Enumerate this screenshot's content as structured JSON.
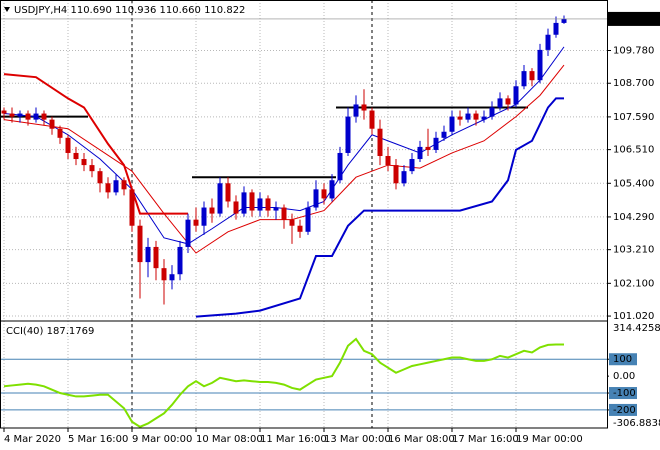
{
  "chart_data": [
    {
      "type": "candlestick",
      "header": "USDJPY,H4  110.690 110.936 110.660 110.822",
      "ylim": [
        100.89,
        111.38
      ],
      "yticks": [
        {
          "value": 109.78,
          "label": "109.780"
        },
        {
          "value": 108.7,
          "label": "108.700"
        },
        {
          "value": 107.59,
          "label": "107.590"
        },
        {
          "value": 106.51,
          "label": "106.510"
        },
        {
          "value": 105.4,
          "label": "105.400"
        },
        {
          "value": 104.29,
          "label": "104.290"
        },
        {
          "value": 103.21,
          "label": "103.210"
        },
        {
          "value": 102.1,
          "label": "102.100"
        },
        {
          "value": 101.02,
          "label": "101.020"
        }
      ],
      "last_price": 110.822,
      "xticks": [
        {
          "value": 0,
          "label": "4 Mar 2020"
        },
        {
          "value": 8,
          "label": "5 Mar 16:00"
        },
        {
          "value": 16,
          "label": "9 Mar 00:00"
        },
        {
          "value": 24,
          "label": "10 Mar 08:00"
        },
        {
          "value": 32,
          "label": "11 Mar 16:00"
        },
        {
          "value": 40,
          "label": "13 Mar 00:00"
        },
        {
          "value": 48,
          "label": "16 Mar 08:00"
        },
        {
          "value": 56,
          "label": "17 Mar 16:00"
        },
        {
          "value": 64,
          "label": "19 Mar 00:00"
        }
      ],
      "separators": [
        16,
        46
      ],
      "up_color": "#0000cc",
      "down_color": "#cc0000",
      "candles": [
        [
          107.8,
          107.9,
          107.5,
          107.7
        ],
        [
          107.7,
          107.9,
          107.4,
          107.6
        ],
        [
          107.6,
          107.8,
          107.4,
          107.7
        ],
        [
          107.7,
          107.8,
          107.3,
          107.5
        ],
        [
          107.5,
          107.9,
          107.4,
          107.7
        ],
        [
          107.7,
          107.8,
          107.3,
          107.5
        ],
        [
          107.5,
          107.6,
          107.0,
          107.2
        ],
        [
          107.2,
          107.3,
          106.7,
          106.9
        ],
        [
          106.9,
          107.0,
          106.2,
          106.4
        ],
        [
          106.4,
          106.6,
          106.0,
          106.2
        ],
        [
          106.2,
          106.4,
          105.8,
          106.0
        ],
        [
          106.0,
          106.2,
          105.6,
          105.8
        ],
        [
          105.8,
          105.9,
          105.1,
          105.4
        ],
        [
          105.4,
          105.6,
          104.9,
          105.1
        ],
        [
          105.1,
          105.7,
          105.0,
          105.5
        ],
        [
          105.5,
          105.6,
          105.0,
          105.2
        ],
        [
          105.2,
          105.3,
          103.8,
          104.0
        ],
        [
          104.0,
          104.2,
          101.6,
          102.8
        ],
        [
          102.8,
          103.6,
          102.3,
          103.3
        ],
        [
          103.3,
          103.5,
          102.2,
          102.6
        ],
        [
          102.6,
          102.9,
          101.4,
          102.2
        ],
        [
          102.2,
          102.7,
          101.9,
          102.4
        ],
        [
          102.4,
          103.5,
          102.2,
          103.3
        ],
        [
          103.3,
          104.4,
          103.1,
          104.2
        ],
        [
          104.2,
          104.6,
          103.8,
          104.0
        ],
        [
          104.0,
          104.8,
          103.7,
          104.6
        ],
        [
          104.6,
          104.9,
          104.1,
          104.4
        ],
        [
          104.4,
          105.6,
          104.3,
          105.4
        ],
        [
          105.4,
          105.6,
          104.6,
          104.8
        ],
        [
          104.8,
          105.0,
          104.2,
          104.4
        ],
        [
          104.4,
          105.3,
          104.3,
          105.1
        ],
        [
          105.1,
          105.2,
          104.3,
          104.5
        ],
        [
          104.5,
          105.1,
          104.3,
          104.9
        ],
        [
          104.9,
          105.0,
          104.3,
          104.5
        ],
        [
          104.5,
          104.8,
          104.2,
          104.6
        ],
        [
          104.6,
          104.7,
          103.9,
          104.2
        ],
        [
          104.2,
          104.4,
          103.4,
          104.0
        ],
        [
          104.0,
          104.2,
          103.6,
          103.8
        ],
        [
          103.8,
          104.8,
          103.7,
          104.6
        ],
        [
          104.6,
          105.5,
          104.5,
          105.2
        ],
        [
          105.2,
          105.4,
          104.7,
          104.9
        ],
        [
          104.9,
          105.7,
          104.8,
          105.5
        ],
        [
          105.5,
          106.6,
          105.4,
          106.4
        ],
        [
          106.4,
          107.9,
          106.3,
          107.6
        ],
        [
          107.6,
          108.3,
          107.4,
          108.0
        ],
        [
          108.0,
          108.5,
          107.5,
          107.8
        ],
        [
          107.8,
          107.9,
          107.0,
          107.2
        ],
        [
          107.2,
          107.5,
          106.0,
          106.3
        ],
        [
          106.3,
          106.6,
          105.8,
          106.0
        ],
        [
          106.0,
          106.2,
          105.2,
          105.4
        ],
        [
          105.4,
          106.0,
          105.3,
          105.8
        ],
        [
          105.8,
          106.4,
          105.7,
          106.2
        ],
        [
          106.2,
          106.8,
          106.1,
          106.6
        ],
        [
          106.6,
          107.2,
          106.3,
          106.5
        ],
        [
          106.5,
          107.1,
          106.4,
          106.9
        ],
        [
          106.9,
          107.3,
          106.8,
          107.1
        ],
        [
          107.1,
          107.8,
          107.0,
          107.6
        ],
        [
          107.6,
          107.8,
          107.3,
          107.5
        ],
        [
          107.5,
          107.9,
          107.4,
          107.7
        ],
        [
          107.7,
          107.8,
          107.3,
          107.5
        ],
        [
          107.5,
          107.8,
          107.4,
          107.6
        ],
        [
          107.6,
          108.1,
          107.5,
          107.9
        ],
        [
          107.9,
          108.4,
          107.8,
          108.2
        ],
        [
          108.2,
          108.3,
          107.8,
          108.0
        ],
        [
          108.0,
          108.8,
          107.9,
          108.6
        ],
        [
          108.6,
          109.3,
          108.5,
          109.1
        ],
        [
          109.1,
          109.2,
          108.6,
          108.8
        ],
        [
          108.8,
          110.0,
          108.7,
          109.8
        ],
        [
          109.8,
          110.5,
          109.6,
          110.3
        ],
        [
          110.3,
          110.9,
          110.2,
          110.69
        ],
        [
          110.69,
          110.936,
          110.66,
          110.822
        ]
      ],
      "lines": [
        {
          "color": "#0000cc",
          "width": 1,
          "x": [
            0,
            4,
            8,
            12,
            16,
            20,
            23,
            26,
            30,
            34,
            37,
            40,
            43,
            46,
            49,
            52,
            56,
            60,
            64,
            67,
            70
          ],
          "values": [
            107.7,
            107.6,
            107.0,
            106.2,
            105.2,
            103.6,
            103.4,
            103.9,
            104.6,
            104.6,
            104.5,
            104.8,
            106.0,
            107.0,
            106.7,
            106.4,
            107.0,
            107.5,
            108.0,
            108.8,
            109.9
          ]
        },
        {
          "color": "#dd0000",
          "width": 1,
          "x": [
            0,
            8,
            16,
            20,
            24,
            28,
            32,
            36,
            40,
            44,
            48,
            52,
            56,
            60,
            64,
            67,
            70
          ],
          "values": [
            107.5,
            107.2,
            105.8,
            104.4,
            103.1,
            103.8,
            104.2,
            104.2,
            104.5,
            105.6,
            106.0,
            105.9,
            106.4,
            106.8,
            107.6,
            108.3,
            109.3
          ]
        },
        {
          "color": "#dd0000",
          "width": 2,
          "x": [
            0,
            4,
            8,
            10,
            13,
            15,
            16,
            17,
            23
          ],
          "values": [
            109.0,
            108.9,
            108.2,
            107.9,
            106.7,
            106.0,
            105.2,
            104.4,
            104.4
          ]
        },
        {
          "color": "#0000cc",
          "width": 2,
          "x": [
            24,
            29,
            32,
            37,
            38,
            39,
            41,
            43,
            45,
            57,
            61,
            63,
            64,
            66,
            68,
            69,
            70
          ],
          "values": [
            101.0,
            101.1,
            101.2,
            101.6,
            102.3,
            103.0,
            103.0,
            104.0,
            104.5,
            104.5,
            104.8,
            105.5,
            106.5,
            106.8,
            107.9,
            108.2,
            108.2
          ]
        }
      ],
      "levels": [
        {
          "value": 107.6,
          "from": 0,
          "to": 10
        },
        {
          "value": 105.6,
          "from": 24,
          "to": 41
        },
        {
          "value": 107.9,
          "from": 42,
          "to": 65
        }
      ]
    },
    {
      "type": "line",
      "label": "CCI(40) 187.1769",
      "color": "#7fe000",
      "ylim": [
        -306.8838,
        314.4258
      ],
      "yticks": [
        100,
        {
          "value": 0,
          "label": "0.00"
        },
        -100,
        -200
      ],
      "levels": [
        100,
        -100,
        -200
      ],
      "values": [
        -60,
        -55,
        -50,
        -45,
        -50,
        -60,
        -80,
        -100,
        -110,
        -120,
        -120,
        -115,
        -110,
        -110,
        -150,
        -190,
        -270,
        -300,
        -280,
        -250,
        -220,
        -170,
        -110,
        -60,
        -30,
        -60,
        -40,
        -10,
        -20,
        -30,
        -25,
        -30,
        -35,
        -35,
        -40,
        -50,
        -70,
        -80,
        -50,
        -20,
        -10,
        0,
        80,
        180,
        220,
        150,
        130,
        80,
        50,
        20,
        40,
        60,
        70,
        80,
        90,
        100,
        110,
        110,
        100,
        90,
        90,
        100,
        120,
        110,
        130,
        150,
        140,
        170,
        185,
        187,
        187.1769
      ]
    }
  ]
}
